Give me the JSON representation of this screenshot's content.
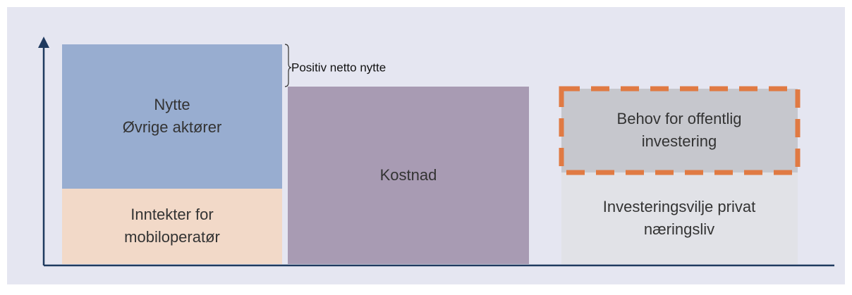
{
  "blocks": [
    {
      "lines": [
        "Nytte",
        "Øvrige aktører"
      ]
    },
    {
      "lines": [
        "Inntekter for",
        "mobiloperatør"
      ]
    },
    {
      "lines": [
        "Kostnad"
      ]
    },
    {
      "lines": [
        "Behov for offentlig",
        "investering"
      ]
    },
    {
      "lines": [
        "Investeringsvilje privat",
        "næringsliv"
      ]
    }
  ],
  "brace_label": "Positiv netto nytte"
}
